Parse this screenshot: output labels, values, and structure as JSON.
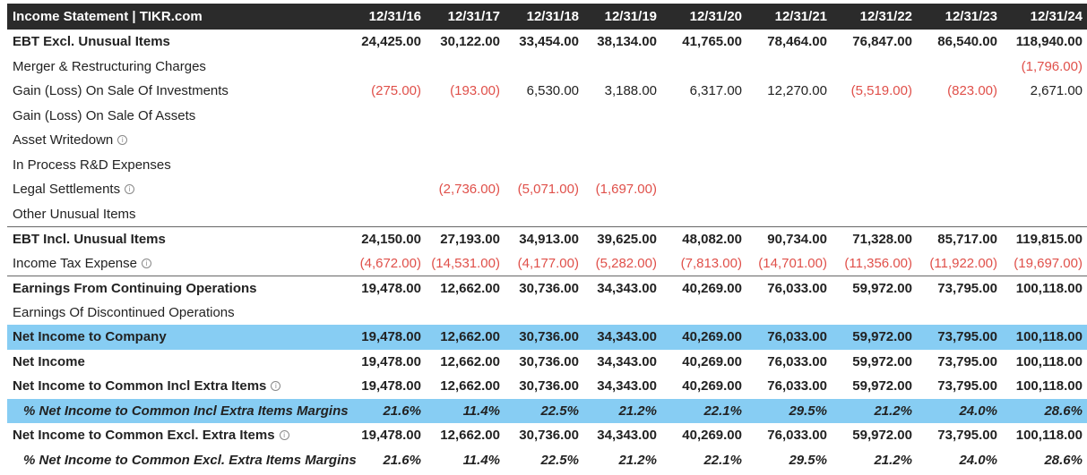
{
  "header": {
    "title": "Income Statement | TIKR.com",
    "years": [
      "12/31/16",
      "12/31/17",
      "12/31/18",
      "12/31/19",
      "12/31/20",
      "12/31/21",
      "12/31/22",
      "12/31/23",
      "12/31/24"
    ]
  },
  "colors": {
    "header_bg": "#2b2b2b",
    "highlight": "#87cdf3",
    "negative": "#e0504a"
  },
  "rows": [
    {
      "label": "EBT Excl. Unusual Items",
      "bold": true,
      "values": [
        "24,425.00",
        "30,122.00",
        "33,454.00",
        "38,134.00",
        "41,765.00",
        "78,464.00",
        "76,847.00",
        "86,540.00",
        "118,940.00"
      ]
    },
    {
      "label": "Merger & Restructuring Charges",
      "values": [
        "",
        "",
        "",
        "",
        "",
        "",
        "",
        "",
        "(1,796.00)"
      ]
    },
    {
      "label": "Gain (Loss) On Sale Of Investments",
      "values": [
        "(275.00)",
        "(193.00)",
        "6,530.00",
        "3,188.00",
        "6,317.00",
        "12,270.00",
        "(5,519.00)",
        "(823.00)",
        "2,671.00"
      ]
    },
    {
      "label": "Gain (Loss) On Sale Of Assets",
      "values": [
        "",
        "",
        "",
        "",
        "",
        "",
        "",
        "",
        ""
      ]
    },
    {
      "label": "Asset Writedown",
      "info": true,
      "values": [
        "",
        "",
        "",
        "",
        "",
        "",
        "",
        "",
        ""
      ]
    },
    {
      "label": "In Process R&D Expenses",
      "values": [
        "",
        "",
        "",
        "",
        "",
        "",
        "",
        "",
        ""
      ]
    },
    {
      "label": "Legal Settlements",
      "info": true,
      "values": [
        "",
        "(2,736.00)",
        "(5,071.00)",
        "(1,697.00)",
        "",
        "",
        "",
        "",
        ""
      ]
    },
    {
      "label": "Other Unusual Items",
      "values": [
        "",
        "",
        "",
        "",
        "",
        "",
        "",
        "",
        ""
      ]
    },
    {
      "label": "EBT Incl. Unusual Items",
      "bold": true,
      "border": true,
      "values": [
        "24,150.00",
        "27,193.00",
        "34,913.00",
        "39,625.00",
        "48,082.00",
        "90,734.00",
        "71,328.00",
        "85,717.00",
        "119,815.00"
      ]
    },
    {
      "label": "Income Tax Expense",
      "info": true,
      "values": [
        "(4,672.00)",
        "(14,531.00)",
        "(4,177.00)",
        "(5,282.00)",
        "(7,813.00)",
        "(14,701.00)",
        "(11,356.00)",
        "(11,922.00)",
        "(19,697.00)"
      ]
    },
    {
      "label": "Earnings From Continuing Operations",
      "bold": true,
      "border": true,
      "values": [
        "19,478.00",
        "12,662.00",
        "30,736.00",
        "34,343.00",
        "40,269.00",
        "76,033.00",
        "59,972.00",
        "73,795.00",
        "100,118.00"
      ]
    },
    {
      "label": "Earnings Of Discontinued Operations",
      "values": [
        "",
        "",
        "",
        "",
        "",
        "",
        "",
        "",
        ""
      ]
    },
    {
      "label": "Net Income to Company",
      "bold": true,
      "highlight": true,
      "values": [
        "19,478.00",
        "12,662.00",
        "30,736.00",
        "34,343.00",
        "40,269.00",
        "76,033.00",
        "59,972.00",
        "73,795.00",
        "100,118.00"
      ]
    },
    {
      "label": "Net Income",
      "bold": true,
      "values": [
        "19,478.00",
        "12,662.00",
        "30,736.00",
        "34,343.00",
        "40,269.00",
        "76,033.00",
        "59,972.00",
        "73,795.00",
        "100,118.00"
      ]
    },
    {
      "label": "Net Income to Common Incl Extra Items",
      "bold": true,
      "info": true,
      "values": [
        "19,478.00",
        "12,662.00",
        "30,736.00",
        "34,343.00",
        "40,269.00",
        "76,033.00",
        "59,972.00",
        "73,795.00",
        "100,118.00"
      ]
    },
    {
      "label": "% Net Income to Common Incl Extra Items Margins",
      "bold": true,
      "italic": true,
      "highlight": true,
      "values": [
        "21.6%",
        "11.4%",
        "22.5%",
        "21.2%",
        "22.1%",
        "29.5%",
        "21.2%",
        "24.0%",
        "28.6%"
      ]
    },
    {
      "label": "Net Income to Common Excl. Extra Items",
      "bold": true,
      "info": true,
      "values": [
        "19,478.00",
        "12,662.00",
        "30,736.00",
        "34,343.00",
        "40,269.00",
        "76,033.00",
        "59,972.00",
        "73,795.00",
        "100,118.00"
      ]
    },
    {
      "label": "% Net Income to Common Excl. Extra Items Margins",
      "bold": true,
      "italic": true,
      "values": [
        "21.6%",
        "11.4%",
        "22.5%",
        "21.2%",
        "22.1%",
        "29.5%",
        "21.2%",
        "24.0%",
        "28.6%"
      ]
    }
  ]
}
